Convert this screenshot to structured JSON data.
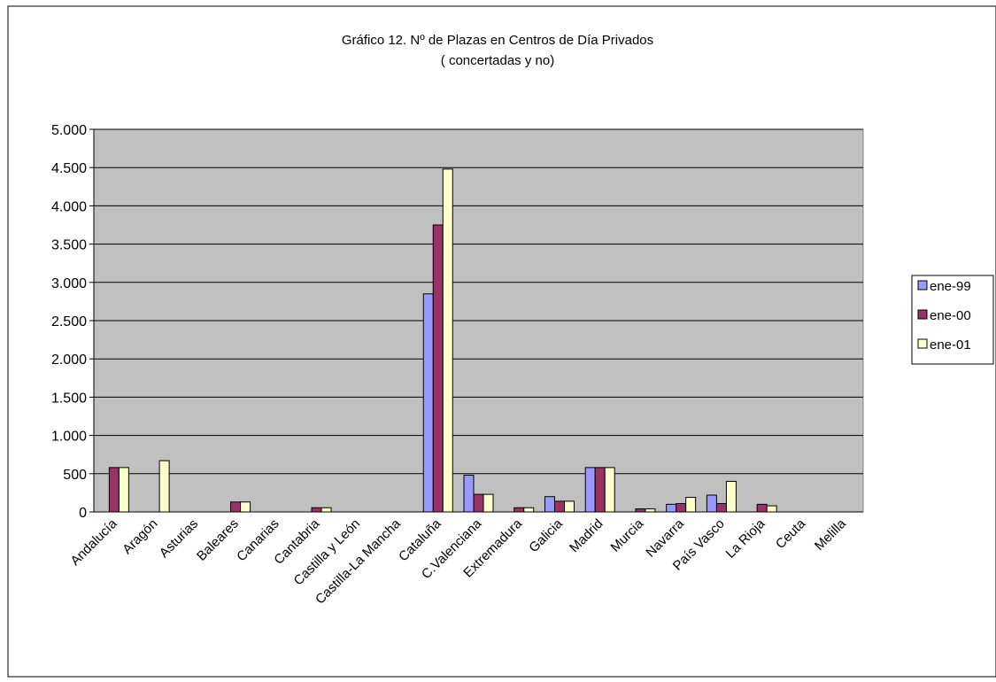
{
  "chart_data": {
    "type": "bar",
    "title": "Gráfico 12. Nº de Plazas en Centros de Día Privados",
    "subtitle": "( concertadas y no)",
    "xlabel": "",
    "ylabel": "",
    "ylim": [
      0,
      5000
    ],
    "yticks": [
      0,
      500,
      1000,
      1500,
      2000,
      2500,
      3000,
      3500,
      4000,
      4500,
      5000
    ],
    "ytick_labels": [
      "0",
      "500",
      "1.000",
      "1.500",
      "2.000",
      "2.500",
      "3.000",
      "3.500",
      "4.000",
      "4.500",
      "5.000"
    ],
    "grid": true,
    "legend_position": "right",
    "categories": [
      "Andalucía",
      "Aragón",
      "Asturias",
      "Baleares",
      "Canarias",
      "Cantabria",
      "Castilla y León",
      "Castilla-La Mancha",
      "Cataluña",
      "C.Valenciana",
      "Extremadura",
      "Galicia",
      "Madrid",
      "Murcia",
      "Navarra",
      "País Vasco",
      "La Rioja",
      "Ceuta",
      "Melilla"
    ],
    "series": [
      {
        "name": "ene-99",
        "color": "#9999ff",
        "values": [
          0,
          0,
          0,
          0,
          0,
          0,
          0,
          0,
          2850,
          480,
          0,
          200,
          580,
          0,
          100,
          220,
          0,
          0,
          0
        ]
      },
      {
        "name": "ene-00",
        "color": "#993366",
        "values": [
          580,
          0,
          0,
          130,
          0,
          55,
          0,
          0,
          3750,
          230,
          55,
          140,
          580,
          40,
          110,
          110,
          100,
          0,
          0
        ]
      },
      {
        "name": "ene-01",
        "color": "#ffffcc",
        "values": [
          580,
          670,
          0,
          130,
          0,
          55,
          0,
          0,
          4480,
          230,
          55,
          140,
          580,
          40,
          190,
          400,
          80,
          0,
          0
        ]
      }
    ],
    "colors": {
      "plot_background": "#c0c0c0",
      "grid": "#000000",
      "bar_stroke": "#000000"
    }
  }
}
